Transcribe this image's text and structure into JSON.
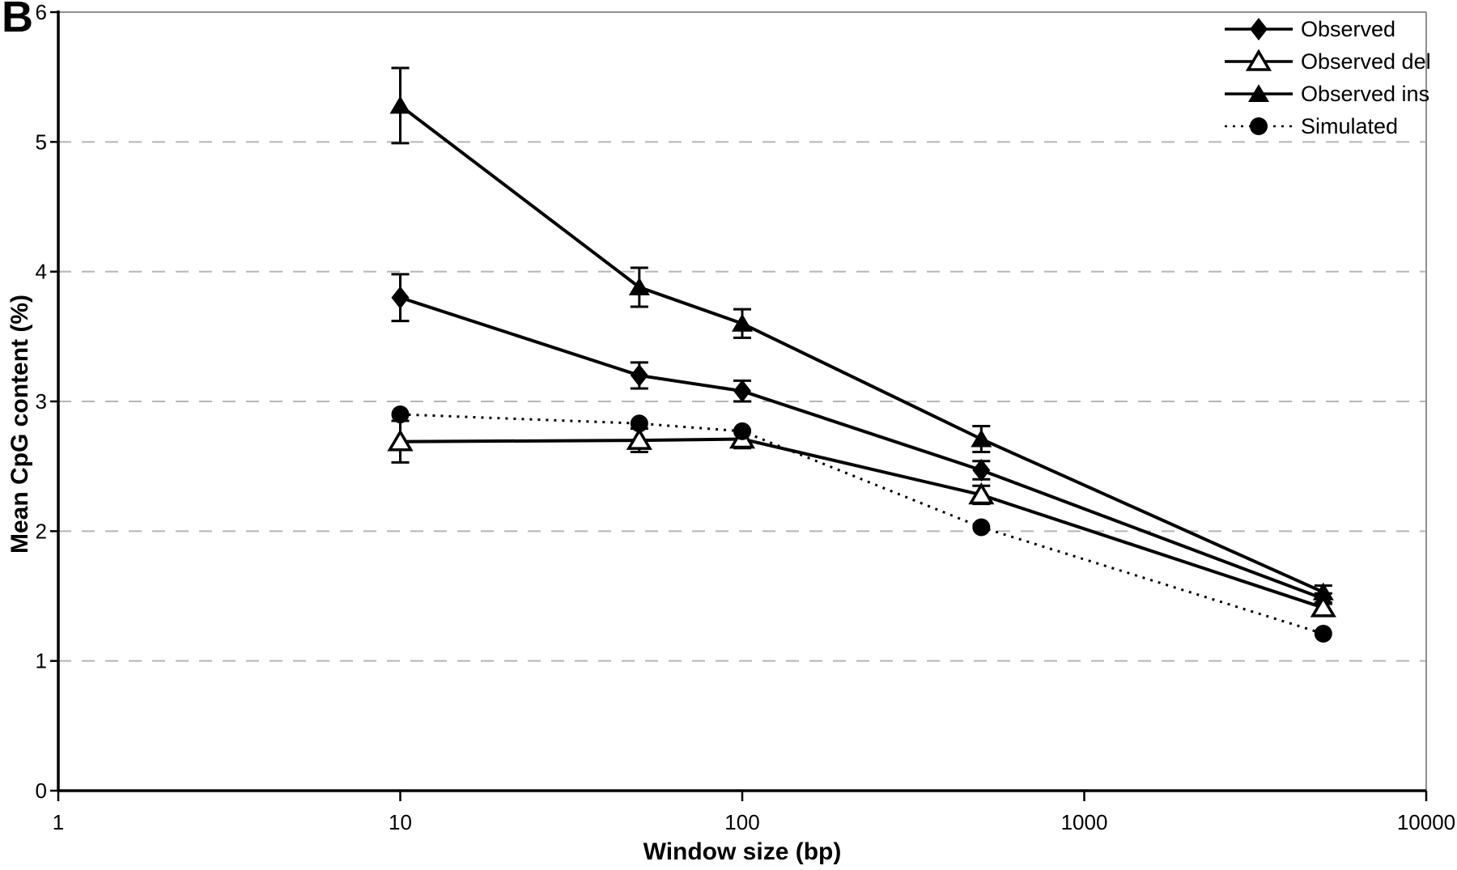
{
  "figure": {
    "panel_label": "B"
  },
  "chart_data": {
    "type": "line",
    "title": "",
    "xlabel": "Window size (bp)",
    "ylabel": "Mean CpG content (%)",
    "x_scale": "log",
    "xlim": [
      1,
      10000
    ],
    "ylim": [
      0,
      6
    ],
    "x_ticks": [
      1,
      10,
      100,
      1000,
      10000
    ],
    "y_ticks": [
      0,
      1,
      2,
      3,
      4,
      5,
      6
    ],
    "grid": "horizontal-dashed",
    "legend_position": "top-right",
    "x": [
      10,
      50,
      100,
      500,
      5000
    ],
    "series": [
      {
        "name": "Observed",
        "marker": "diamond-filled",
        "line_style": "solid",
        "values": [
          3.8,
          3.2,
          3.08,
          2.47,
          1.48
        ],
        "errors": [
          0.18,
          0.1,
          0.08,
          0.07,
          0.04
        ]
      },
      {
        "name": "Observed del",
        "marker": "triangle-open",
        "line_style": "solid",
        "values": [
          2.69,
          2.7,
          2.71,
          2.28,
          1.41
        ],
        "errors": [
          0.16,
          0.09,
          0.07,
          0.07,
          0.04
        ]
      },
      {
        "name": "Observed ins",
        "marker": "triangle-filled",
        "line_style": "solid",
        "values": [
          5.28,
          3.88,
          3.6,
          2.71,
          1.53
        ],
        "errors": [
          0.29,
          0.15,
          0.11,
          0.1,
          0.05
        ]
      },
      {
        "name": "Simulated",
        "marker": "circle-filled",
        "line_style": "dotted",
        "values": [
          2.9,
          2.83,
          2.77,
          2.03,
          1.21
        ],
        "errors": null
      }
    ],
    "colors": {
      "line": "#000000",
      "grid": "#b5b5b5",
      "frame": "#8f8f8f",
      "background": "#ffffff"
    }
  }
}
